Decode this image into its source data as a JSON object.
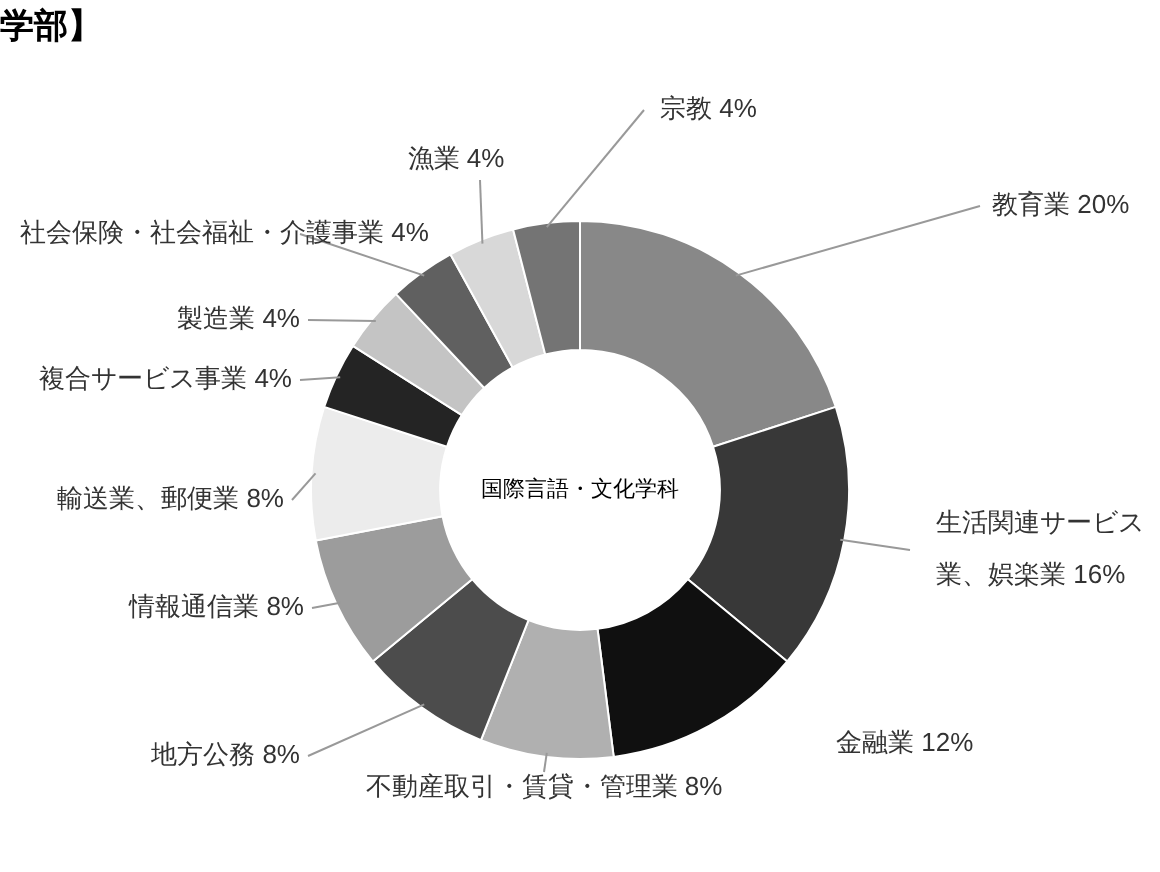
{
  "chart_data": {
    "type": "donut",
    "title": "学部】",
    "categories": [
      "教育業",
      "生活関連サービス業、娯楽業",
      "金融業",
      "不動産取引・賃貸・管理業",
      "地方公務",
      "情報通信業",
      "輸送業、郵便業",
      "複合サービス事業",
      "製造業",
      "社会保険・社会福祉・介護事業",
      "漁業",
      "宗教"
    ],
    "values": [
      20,
      16,
      12,
      8,
      8,
      8,
      8,
      4,
      4,
      4,
      4,
      4
    ],
    "value_labels": [
      "20%",
      "16%",
      "12%",
      "8%",
      "8%",
      "8%",
      "8%",
      "4%",
      "4%",
      "4%",
      "4%",
      "4%"
    ],
    "colors": [
      "#888888",
      "#383838",
      "#101010",
      "#b0b0b0",
      "#4c4c4c",
      "#9c9c9c",
      "#ececec",
      "#242424",
      "#c4c4c4",
      "#606060",
      "#d8d8d8",
      "#747474"
    ],
    "annotations": [
      "国際言語・文化学科"
    ],
    "legend": false
  }
}
